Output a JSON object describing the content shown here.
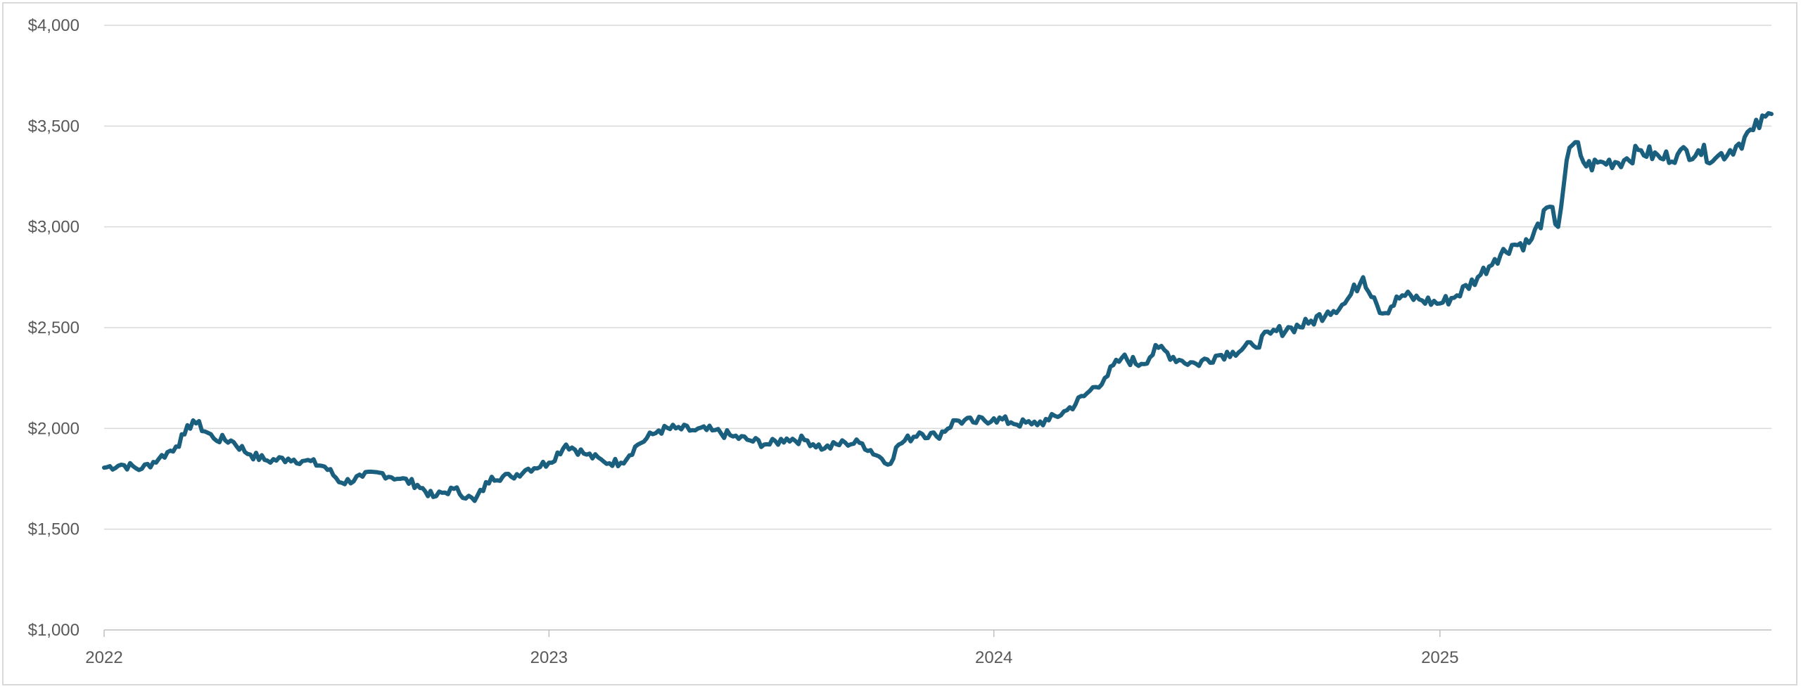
{
  "chart_data": {
    "type": "line",
    "title": "",
    "xlabel": "",
    "ylabel": "",
    "ylim": [
      1000,
      4000
    ],
    "xlim": [
      "2022-01-01",
      "2025-09-30"
    ],
    "y_ticks": [
      1000,
      1500,
      2000,
      2500,
      3000,
      3500,
      4000
    ],
    "y_tick_labels": [
      "$1,000",
      "$1,500",
      "$2,000",
      "$2,500",
      "$3,000",
      "$3,500",
      "$4,000"
    ],
    "x_ticks": [
      "2022-01-01",
      "2023-01-01",
      "2024-01-01",
      "2025-01-01"
    ],
    "x_tick_labels": [
      "2022",
      "2023",
      "2024",
      "2025"
    ],
    "grid": true,
    "legend": "none",
    "line_color": "#1b5f7f",
    "series": [
      {
        "x": [
          "2022-01-01",
          "2022-01-15",
          "2022-02-01",
          "2022-02-15",
          "2022-03-01",
          "2022-03-08",
          "2022-03-15",
          "2022-04-01",
          "2022-04-15",
          "2022-05-01",
          "2022-05-15",
          "2022-06-01",
          "2022-06-15",
          "2022-07-01",
          "2022-07-15",
          "2022-08-01",
          "2022-08-15",
          "2022-09-01",
          "2022-09-15",
          "2022-09-28",
          "2022-10-15",
          "2022-11-01",
          "2022-11-15",
          "2022-12-01",
          "2022-12-15",
          "2023-01-01",
          "2023-01-15",
          "2023-02-01",
          "2023-02-15",
          "2023-03-01",
          "2023-03-15",
          "2023-04-01",
          "2023-04-15",
          "2023-05-01",
          "2023-05-15",
          "2023-06-01",
          "2023-06-15",
          "2023-07-01",
          "2023-07-15",
          "2023-08-01",
          "2023-08-15",
          "2023-09-01",
          "2023-09-15",
          "2023-10-01",
          "2023-10-06",
          "2023-10-15",
          "2023-11-01",
          "2023-11-15",
          "2023-12-01",
          "2023-12-15",
          "2024-01-01",
          "2024-01-15",
          "2024-02-01",
          "2024-02-15",
          "2024-03-01",
          "2024-03-15",
          "2024-04-01",
          "2024-04-15",
          "2024-05-01",
          "2024-05-15",
          "2024-06-01",
          "2024-06-15",
          "2024-07-01",
          "2024-07-15",
          "2024-08-01",
          "2024-08-15",
          "2024-09-01",
          "2024-09-15",
          "2024-10-01",
          "2024-10-15",
          "2024-10-30",
          "2024-11-08",
          "2024-11-15",
          "2024-12-01",
          "2024-12-15",
          "2025-01-01",
          "2025-01-15",
          "2025-02-01",
          "2025-02-15",
          "2025-03-01",
          "2025-03-15",
          "2025-04-01",
          "2025-04-08",
          "2025-04-15",
          "2025-04-22",
          "2025-05-01",
          "2025-05-15",
          "2025-06-01",
          "2025-06-15",
          "2025-07-01",
          "2025-07-15",
          "2025-08-01",
          "2025-08-15",
          "2025-09-01",
          "2025-09-15",
          "2025-09-30"
        ],
        "y": [
          1805,
          1820,
          1800,
          1850,
          1910,
          1970,
          2040,
          1950,
          1940,
          1870,
          1840,
          1850,
          1840,
          1810,
          1730,
          1760,
          1780,
          1750,
          1720,
          1660,
          1700,
          1640,
          1760,
          1760,
          1800,
          1830,
          1920,
          1870,
          1835,
          1830,
          1920,
          1990,
          2000,
          1990,
          1990,
          1960,
          1940,
          1920,
          1950,
          1940,
          1900,
          1930,
          1925,
          1850,
          1820,
          1920,
          1980,
          1960,
          2040,
          2030,
          2050,
          2030,
          2020,
          2040,
          2090,
          2160,
          2250,
          2350,
          2320,
          2400,
          2340,
          2320,
          2360,
          2380,
          2410,
          2470,
          2500,
          2520,
          2580,
          2620,
          2750,
          2650,
          2570,
          2660,
          2640,
          2620,
          2660,
          2750,
          2840,
          2910,
          2920,
          3100,
          3000,
          3330,
          3420,
          3300,
          3320,
          3330,
          3380,
          3340,
          3360,
          3380,
          3340,
          3400,
          3480,
          3560
        ]
      }
    ]
  }
}
